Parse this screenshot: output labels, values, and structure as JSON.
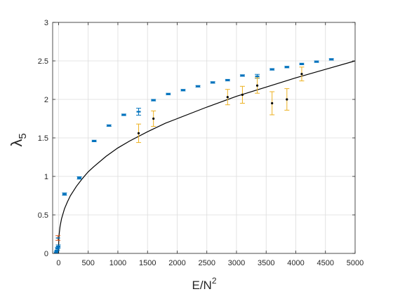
{
  "chart_data": {
    "type": "scatter",
    "title": "",
    "xlabel": {
      "base": "E/N",
      "sup": "2"
    },
    "ylabel": {
      "base": "λ",
      "sub": "5"
    },
    "xlim": [
      -100,
      5000
    ],
    "ylim": [
      0,
      3
    ],
    "xticks": [
      0,
      500,
      1000,
      1500,
      2000,
      2500,
      3000,
      3500,
      4000,
      4500,
      5000
    ],
    "yticks": [
      0,
      0.5,
      1,
      1.5,
      2,
      2.5,
      3
    ],
    "xtick_labels": [
      "0",
      "500",
      "1000",
      "1500",
      "2000",
      "2500",
      "3000",
      "3500",
      "4000",
      "4500",
      "5000"
    ],
    "ytick_labels": [
      "0",
      "0.5",
      "1",
      "1.5",
      "2",
      "2.5",
      "3"
    ],
    "grid": true,
    "colors": {
      "series_a": "#0072BD",
      "series_b": "#EDB120",
      "series_c": "#D95319",
      "fit": "#000000",
      "marker_b": "#000000"
    },
    "series": [
      {
        "style": "blue-errorbar",
        "points": [
          {
            "x": -40,
            "y": 0.01,
            "err": 0.01
          },
          {
            "x": -30,
            "y": 0.03,
            "err": 0.01
          },
          {
            "x": -20,
            "y": 0.06,
            "err": 0.02
          },
          {
            "x": -5,
            "y": 0.09,
            "err": 0.02
          },
          {
            "x": 100,
            "y": 0.77,
            "err": 0.015
          },
          {
            "x": 350,
            "y": 0.98,
            "err": 0.015
          },
          {
            "x": 600,
            "y": 1.46,
            "err": 0.01
          },
          {
            "x": 850,
            "y": 1.66,
            "err": 0.01
          },
          {
            "x": 1100,
            "y": 1.8,
            "err": 0.01
          },
          {
            "x": 1350,
            "y": 1.84,
            "err": 0.045
          },
          {
            "x": 1600,
            "y": 1.99,
            "err": 0.01
          },
          {
            "x": 1850,
            "y": 2.07,
            "err": 0.01
          },
          {
            "x": 2100,
            "y": 2.12,
            "err": 0.01
          },
          {
            "x": 2350,
            "y": 2.17,
            "err": 0.01
          },
          {
            "x": 2600,
            "y": 2.22,
            "err": 0.01
          },
          {
            "x": 2850,
            "y": 2.25,
            "err": 0.01
          },
          {
            "x": 3100,
            "y": 2.31,
            "err": 0.01
          },
          {
            "x": 3350,
            "y": 2.3,
            "err": 0.025
          },
          {
            "x": 3600,
            "y": 2.39,
            "err": 0.01
          },
          {
            "x": 3850,
            "y": 2.42,
            "err": 0.01
          },
          {
            "x": 4100,
            "y": 2.46,
            "err": 0.01
          },
          {
            "x": 4350,
            "y": 2.49,
            "err": 0.01
          },
          {
            "x": 4600,
            "y": 2.52,
            "err": 0.01
          }
        ]
      },
      {
        "style": "orange-errorbar-black-dot",
        "points": [
          {
            "x": 1350,
            "y": 1.56,
            "err": 0.12
          },
          {
            "x": 1600,
            "y": 1.75,
            "err": 0.1
          },
          {
            "x": 2850,
            "y": 2.03,
            "err": 0.1
          },
          {
            "x": 3100,
            "y": 2.06,
            "err": 0.11
          },
          {
            "x": 3350,
            "y": 2.18,
            "err": 0.1
          },
          {
            "x": 3600,
            "y": 1.95,
            "err": 0.15
          },
          {
            "x": 3850,
            "y": 2.0,
            "err": 0.14
          },
          {
            "x": 4100,
            "y": 2.33,
            "err": 0.09
          }
        ]
      },
      {
        "style": "red-errorbar",
        "points": [
          {
            "x": -10,
            "y": 0.2,
            "err": 0.03
          }
        ]
      },
      {
        "style": "line",
        "points": [
          {
            "x": 0,
            "y": 0.0
          },
          {
            "x": 1,
            "y": 0.09
          },
          {
            "x": 5,
            "y": 0.19
          },
          {
            "x": 10,
            "y": 0.25
          },
          {
            "x": 25,
            "y": 0.35
          },
          {
            "x": 50,
            "y": 0.45
          },
          {
            "x": 100,
            "y": 0.58
          },
          {
            "x": 150,
            "y": 0.67
          },
          {
            "x": 200,
            "y": 0.75
          },
          {
            "x": 300,
            "y": 0.87
          },
          {
            "x": 400,
            "y": 0.97
          },
          {
            "x": 500,
            "y": 1.06
          },
          {
            "x": 600,
            "y": 1.13
          },
          {
            "x": 800,
            "y": 1.26
          },
          {
            "x": 1000,
            "y": 1.37
          },
          {
            "x": 1200,
            "y": 1.46
          },
          {
            "x": 1500,
            "y": 1.58
          },
          {
            "x": 1800,
            "y": 1.69
          },
          {
            "x": 2000,
            "y": 1.75
          },
          {
            "x": 2500,
            "y": 1.9
          },
          {
            "x": 3000,
            "y": 2.04
          },
          {
            "x": 3500,
            "y": 2.16
          },
          {
            "x": 4000,
            "y": 2.28
          },
          {
            "x": 4500,
            "y": 2.39
          },
          {
            "x": 5000,
            "y": 2.5
          }
        ]
      }
    ]
  }
}
